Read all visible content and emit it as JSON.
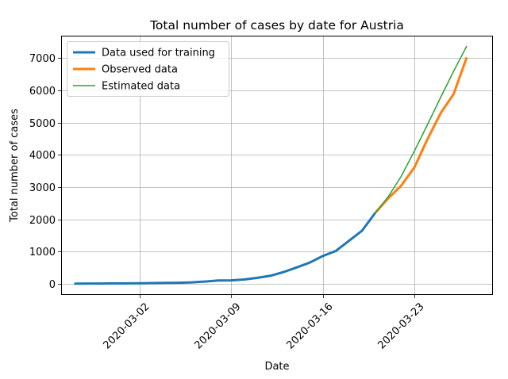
{
  "chart_data": {
    "type": "line",
    "title": "Total number of cases by date for Austria",
    "xlabel": "Date",
    "ylabel": "Total number of cases",
    "xlim": [
      "2020-02-25",
      "2020-03-29"
    ],
    "ylim": [
      -350,
      7700
    ],
    "x_ticks": [
      "2020-03-02",
      "2020-03-09",
      "2020-03-16",
      "2020-03-23"
    ],
    "y_ticks": [
      0,
      1000,
      2000,
      3000,
      4000,
      5000,
      6000,
      7000
    ],
    "grid": true,
    "legend_position": "top-left",
    "series": [
      {
        "name": "Data used for training",
        "color": "#1f77b4",
        "style": "thick",
        "x": [
          "2020-02-26",
          "2020-02-27",
          "2020-02-28",
          "2020-02-29",
          "2020-03-01",
          "2020-03-02",
          "2020-03-03",
          "2020-03-04",
          "2020-03-05",
          "2020-03-06",
          "2020-03-07",
          "2020-03-08",
          "2020-03-09",
          "2020-03-10",
          "2020-03-11",
          "2020-03-12",
          "2020-03-13",
          "2020-03-14",
          "2020-03-15",
          "2020-03-16",
          "2020-03-17",
          "2020-03-18",
          "2020-03-19",
          "2020-03-20"
        ],
        "y": [
          2,
          3,
          5,
          9,
          10,
          14,
          18,
          24,
          29,
          41,
          66,
          99,
          102,
          131,
          182,
          246,
          361,
          504,
          655,
          860,
          1018,
          1332,
          1646,
          2196
        ]
      },
      {
        "name": "Observed data",
        "color": "#ff7f0e",
        "style": "thick",
        "x": [
          "2020-03-20",
          "2020-03-21",
          "2020-03-22",
          "2020-03-23",
          "2020-03-24",
          "2020-03-25",
          "2020-03-26",
          "2020-03-27"
        ],
        "y": [
          2196,
          2650,
          3050,
          3610,
          4490,
          5290,
          5890,
          7030
        ]
      },
      {
        "name": "Estimated data",
        "color": "#2ca02c",
        "style": "thin",
        "x": [
          "2020-03-20",
          "2020-03-21",
          "2020-03-22",
          "2020-03-23",
          "2020-03-24",
          "2020-03-25",
          "2020-03-26",
          "2020-03-27"
        ],
        "y": [
          2196,
          2700,
          3340,
          4120,
          4940,
          5780,
          6600,
          7380
        ]
      }
    ]
  }
}
